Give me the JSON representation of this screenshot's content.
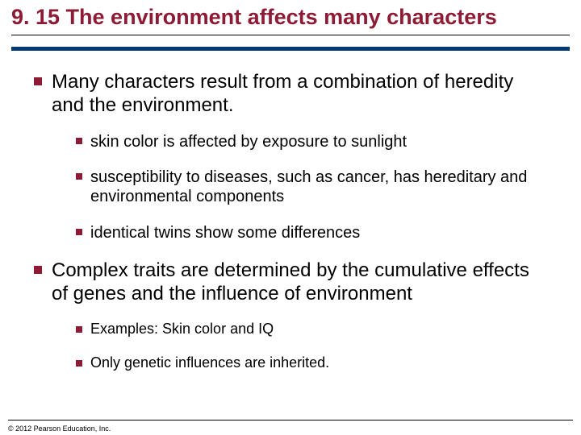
{
  "title": {
    "text": "9. 15 The environment affects many characters",
    "fontsize": 27,
    "color": "#8e1b35"
  },
  "rules": {
    "top_color": "#000000",
    "blue_color": "#003a73"
  },
  "bullet_color": "#8e1b35",
  "text_color": "#000000",
  "l1_fontsize": 24,
  "l2_fontsize": 20,
  "l2b_fontsize": 18,
  "items": [
    {
      "text": "Many characters result from a combination of heredity and the environment.",
      "sub_fontsize_key": "l2_fontsize",
      "sub": [
        {
          "text": "skin color is affected by exposure to sunlight"
        },
        {
          "text": "susceptibility to diseases, such as cancer, has hereditary and environmental components"
        },
        {
          "text": "identical twins show some differences"
        }
      ]
    },
    {
      "text": "Complex traits are determined by the cumulative effects of genes and the influence of environment",
      "sub_fontsize_key": "l2b_fontsize",
      "sub": [
        {
          "text": "Examples: Skin color and IQ"
        },
        {
          "text": "Only genetic influences are inherited."
        }
      ]
    }
  ],
  "copyright": {
    "text": "© 2012 Pearson Education, Inc.",
    "fontsize": 9,
    "color": "#000000"
  }
}
